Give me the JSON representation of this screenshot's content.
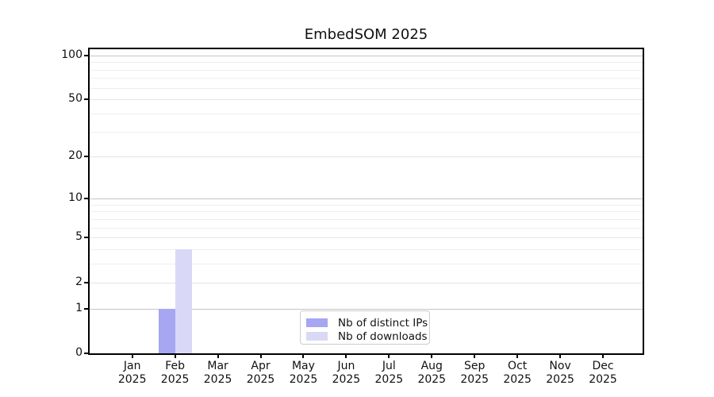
{
  "chart_data": {
    "type": "bar",
    "title": "EmbedSOM 2025",
    "categories": [
      "Jan 2025",
      "Feb 2025",
      "Mar 2025",
      "Apr 2025",
      "May 2025",
      "Jun 2025",
      "Jul 2025",
      "Aug 2025",
      "Sep 2025",
      "Oct 2025",
      "Nov 2025",
      "Dec 2025"
    ],
    "series": [
      {
        "name": "Nb of distinct IPs",
        "color": "#a6a6f2",
        "values": [
          0,
          1,
          0,
          0,
          0,
          0,
          0,
          0,
          0,
          0,
          0,
          0
        ]
      },
      {
        "name": "Nb of downloads",
        "color": "#d9d9f7",
        "values": [
          0,
          4,
          0,
          0,
          0,
          0,
          0,
          0,
          0,
          0,
          0,
          0
        ]
      }
    ],
    "xlabel": "",
    "ylabel": "",
    "yscale": "log1p",
    "ylim": [
      0,
      110
    ],
    "yticks": [
      0,
      1,
      2,
      5,
      10,
      20,
      50,
      100
    ],
    "yticks_minor": [
      3,
      4,
      6,
      7,
      8,
      9,
      30,
      40,
      60,
      70,
      80,
      90
    ],
    "grid": "horizontal",
    "legend_position": "lower center"
  }
}
